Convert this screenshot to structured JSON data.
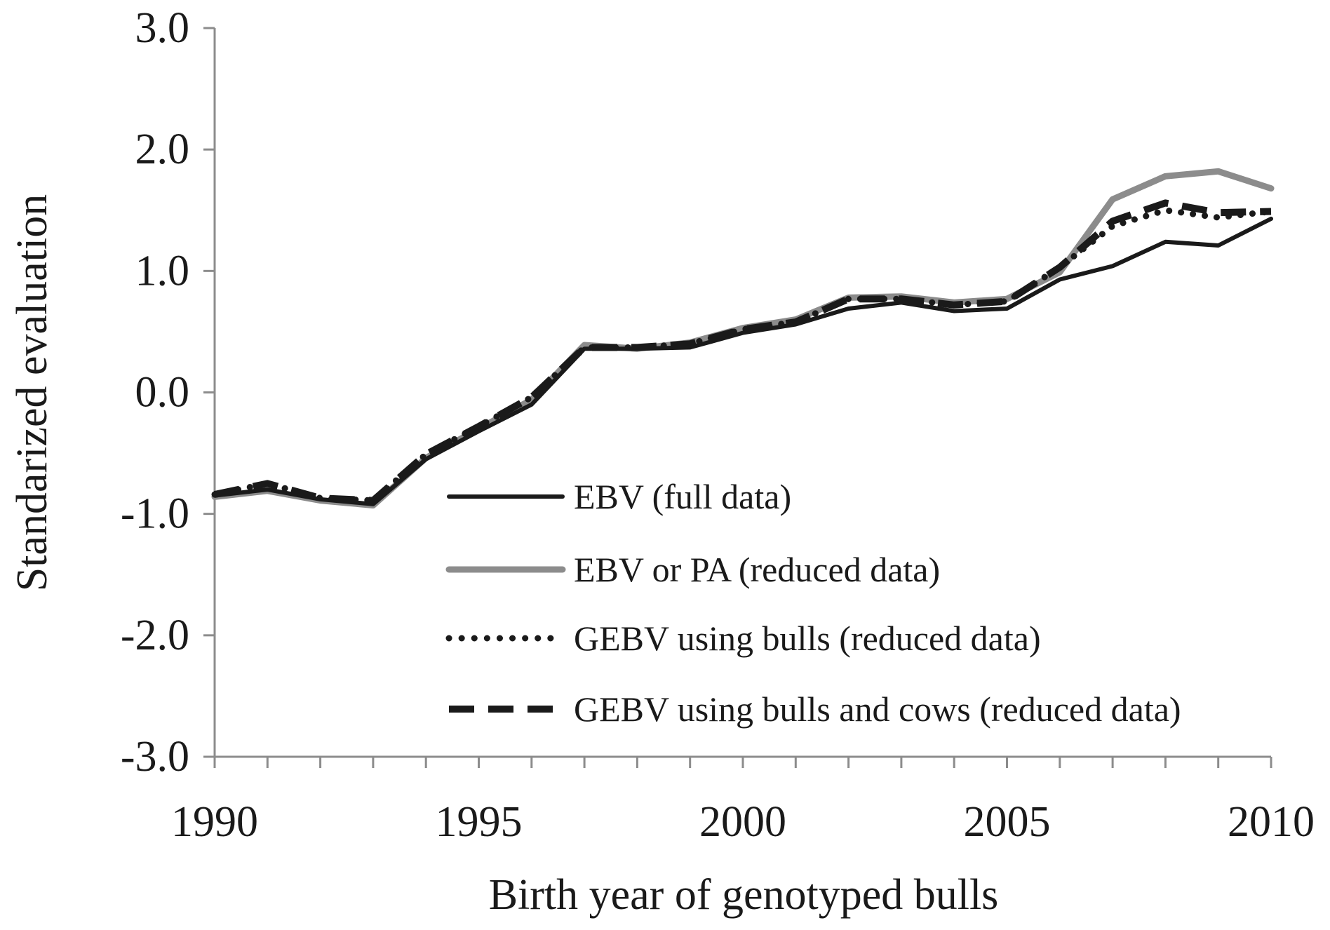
{
  "chart_data": {
    "type": "line",
    "title": "",
    "xlabel": "Birth year of genotyped bulls",
    "ylabel": "Standarized evaluation",
    "xlim": [
      1990,
      2010
    ],
    "ylim": [
      -3.0,
      3.0
    ],
    "x_tick_labels": [
      "1990",
      "1995",
      "2000",
      "2005",
      "2010"
    ],
    "y_tick_labels": [
      "3.0",
      "2.0",
      "1.0",
      "0.0",
      "-1.0",
      "-2.0",
      "-3.0"
    ],
    "x": [
      1990,
      1991,
      1992,
      1993,
      1994,
      1995,
      1996,
      1997,
      1998,
      1999,
      2000,
      2001,
      2002,
      2003,
      2004,
      2005,
      2006,
      2007,
      2008,
      2009,
      2010
    ],
    "grid": false,
    "legend_position": "bottom-right inside",
    "series": [
      {
        "name": "EBV (full data)",
        "style": "solid",
        "color": "#1a1a1a",
        "values": [
          -0.85,
          -0.8,
          -0.88,
          -0.92,
          -0.55,
          -0.32,
          -0.1,
          0.36,
          0.36,
          0.37,
          0.49,
          0.56,
          0.69,
          0.74,
          0.67,
          0.69,
          0.93,
          1.04,
          1.24,
          1.21,
          1.43
        ]
      },
      {
        "name": "EBV or PA (reduced data)",
        "style": "solid",
        "color": "#8c8c8c",
        "values": [
          -0.86,
          -0.81,
          -0.89,
          -0.93,
          -0.54,
          -0.3,
          -0.06,
          0.39,
          0.36,
          0.41,
          0.53,
          0.6,
          0.78,
          0.79,
          0.74,
          0.77,
          0.99,
          1.59,
          1.78,
          1.82,
          1.68
        ]
      },
      {
        "name": "GEBV using bulls (reduced data)",
        "style": "dotted",
        "color": "#1a1a1a",
        "values": [
          -0.84,
          -0.75,
          -0.87,
          -0.89,
          -0.51,
          -0.28,
          -0.04,
          0.37,
          0.37,
          0.4,
          0.52,
          0.58,
          0.77,
          0.77,
          0.72,
          0.75,
          1.03,
          1.37,
          1.5,
          1.44,
          1.49
        ]
      },
      {
        "name": "GEBV using bulls and cows (reduced data)",
        "style": "dashed",
        "color": "#1a1a1a",
        "values": [
          -0.84,
          -0.75,
          -0.87,
          -0.89,
          -0.51,
          -0.28,
          -0.04,
          0.37,
          0.37,
          0.4,
          0.52,
          0.58,
          0.77,
          0.77,
          0.72,
          0.75,
          1.03,
          1.41,
          1.56,
          1.48,
          1.49
        ]
      }
    ]
  }
}
